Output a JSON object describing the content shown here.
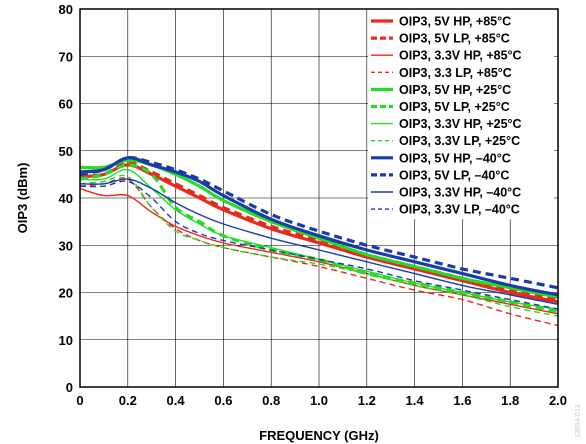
{
  "chart_data": {
    "type": "line",
    "xlabel": "FREQUENCY (GHz)",
    "ylabel": "OIP3 (dBm)",
    "xlim": [
      0,
      2.0
    ],
    "ylim": [
      0,
      80
    ],
    "x_ticks": [
      "0",
      "0.2",
      "0.4",
      "0.6",
      "0.8",
      "1.0",
      "1.2",
      "1.4",
      "1.6",
      "1.8",
      "2.0"
    ],
    "y_ticks": [
      "0",
      "10",
      "20",
      "30",
      "40",
      "50",
      "60",
      "70",
      "80"
    ],
    "grid": true,
    "legend_position": "top-right",
    "watermark": "13094-013",
    "x": [
      0.0,
      0.1,
      0.2,
      0.3,
      0.4,
      0.5,
      0.6,
      0.8,
      1.0,
      1.2,
      1.4,
      1.6,
      1.8,
      2.0
    ],
    "series": [
      {
        "name": "OIP3, 5V HP, +85°C",
        "color": "#e8291c",
        "style": "solid",
        "width": "thick",
        "values": [
          44.5,
          45.0,
          47.0,
          45.0,
          42.5,
          40.0,
          37.5,
          33.5,
          30.5,
          27.5,
          25.0,
          22.5,
          20.0,
          18.0
        ]
      },
      {
        "name": "OIP3, 5V LP, +85°C",
        "color": "#e8291c",
        "style": "dashed",
        "width": "thick",
        "values": [
          44.0,
          45.0,
          47.5,
          45.5,
          43.0,
          40.5,
          38.0,
          34.0,
          31.0,
          28.0,
          25.5,
          23.0,
          20.5,
          18.5
        ]
      },
      {
        "name": "OIP3, 3.3V HP, +85°C",
        "color": "#e8291c",
        "style": "solid",
        "width": "thin",
        "values": [
          42.0,
          40.5,
          40.5,
          37.0,
          34.0,
          32.0,
          30.5,
          28.5,
          26.5,
          24.0,
          21.5,
          19.5,
          17.5,
          15.5
        ]
      },
      {
        "name": "OIP3, 3.3 LP, +85°C",
        "color": "#e8291c",
        "style": "dashed",
        "width": "thin",
        "values": [
          42.5,
          43.0,
          44.0,
          38.0,
          33.5,
          31.0,
          29.5,
          27.5,
          25.5,
          23.0,
          20.5,
          18.5,
          15.5,
          13.0
        ]
      },
      {
        "name": "OIP3, 5V HP, +25°C",
        "color": "#22dd22",
        "style": "solid",
        "width": "thick",
        "values": [
          46.5,
          46.5,
          48.0,
          47.0,
          45.0,
          42.5,
          39.5,
          35.0,
          31.5,
          28.0,
          25.5,
          23.0,
          21.0,
          19.0
        ]
      },
      {
        "name": "OIP3, 5V LP, +25°C",
        "color": "#22dd22",
        "style": "dashed",
        "width": "thick",
        "values": [
          44.0,
          45.0,
          47.0,
          45.0,
          38.0,
          35.0,
          32.0,
          29.0,
          27.0,
          24.0,
          22.0,
          20.0,
          18.0,
          16.0
        ]
      },
      {
        "name": "OIP3, 3.3V HP, +25°C",
        "color": "#22dd22",
        "style": "solid",
        "width": "thin",
        "values": [
          44.0,
          44.0,
          46.0,
          42.0,
          37.5,
          34.5,
          32.0,
          29.5,
          27.0,
          24.5,
          22.0,
          20.0,
          18.0,
          16.5
        ]
      },
      {
        "name": "OIP3, 3.3V LP, +25°C",
        "color": "#22dd22",
        "style": "dashed",
        "width": "thin",
        "values": [
          43.0,
          43.5,
          44.5,
          38.0,
          33.0,
          31.0,
          29.5,
          27.5,
          26.0,
          24.0,
          21.5,
          19.5,
          17.0,
          15.0
        ]
      },
      {
        "name": "OIP3, 5V HP, –40°C",
        "color": "#1a3caa",
        "style": "solid",
        "width": "thick",
        "values": [
          45.5,
          46.0,
          48.5,
          47.0,
          45.5,
          43.5,
          40.5,
          35.5,
          32.0,
          29.0,
          26.5,
          24.0,
          21.5,
          19.5
        ]
      },
      {
        "name": "OIP3, 5V LP, –40°C",
        "color": "#1a3caa",
        "style": "dashed",
        "width": "thick",
        "values": [
          45.0,
          46.0,
          48.5,
          47.5,
          46.0,
          44.0,
          41.5,
          36.5,
          33.0,
          30.0,
          27.5,
          25.0,
          23.0,
          21.0
        ]
      },
      {
        "name": "OIP3, 3.3V HP, –40°C",
        "color": "#1a3caa",
        "style": "solid",
        "width": "thin",
        "values": [
          43.0,
          43.0,
          44.0,
          42.0,
          39.0,
          36.5,
          34.5,
          31.5,
          29.0,
          26.5,
          24.0,
          21.5,
          19.5,
          17.5
        ]
      },
      {
        "name": "OIP3, 3.3V LP, –40°C",
        "color": "#1a3caa",
        "style": "dashed",
        "width": "thin",
        "values": [
          42.5,
          42.5,
          43.5,
          40.0,
          35.0,
          32.5,
          31.0,
          29.0,
          27.0,
          25.0,
          22.5,
          20.5,
          18.5,
          16.5
        ]
      }
    ]
  }
}
